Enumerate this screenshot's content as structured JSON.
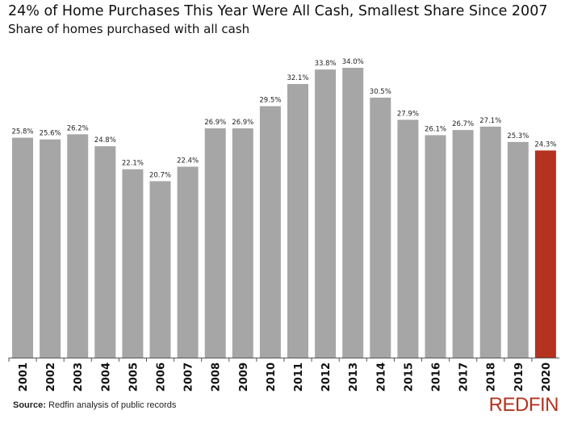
{
  "chart_data": {
    "type": "bar",
    "title": "24% of Home Purchases This Year Were All Cash, Smallest Share Since 2007",
    "subtitle": "Share of homes purchased with all cash",
    "categories": [
      "2001",
      "2002",
      "2003",
      "2004",
      "2005",
      "2006",
      "2007",
      "2008",
      "2009",
      "2010",
      "2011",
      "2012",
      "2013",
      "2014",
      "2015",
      "2016",
      "2017",
      "2018",
      "2019",
      "2020"
    ],
    "values": [
      25.8,
      25.6,
      26.2,
      24.8,
      22.1,
      20.7,
      22.4,
      26.9,
      26.9,
      29.5,
      32.1,
      33.8,
      34.0,
      30.5,
      27.9,
      26.1,
      26.7,
      27.1,
      25.3,
      24.3
    ],
    "value_labels": [
      "25.8%",
      "25.6%",
      "26.2%",
      "24.8%",
      "22.1%",
      "20.7%",
      "22.4%",
      "26.9%",
      "26.9%",
      "29.5%",
      "32.1%",
      "33.8%",
      "34.0%",
      "30.5%",
      "27.9%",
      "26.1%",
      "26.7%",
      "27.1%",
      "25.3%",
      "24.3%"
    ],
    "xlabel": "",
    "ylabel": "",
    "ylim": [
      0,
      34
    ],
    "grid": false,
    "colors": {
      "default": "#a6a6a6",
      "highlight": "#b5321f"
    },
    "highlight_category": "2020"
  },
  "footer": {
    "source_label": "Source:",
    "source_text": " Redfin analysis of public records",
    "logo_text": "REDFIN"
  }
}
